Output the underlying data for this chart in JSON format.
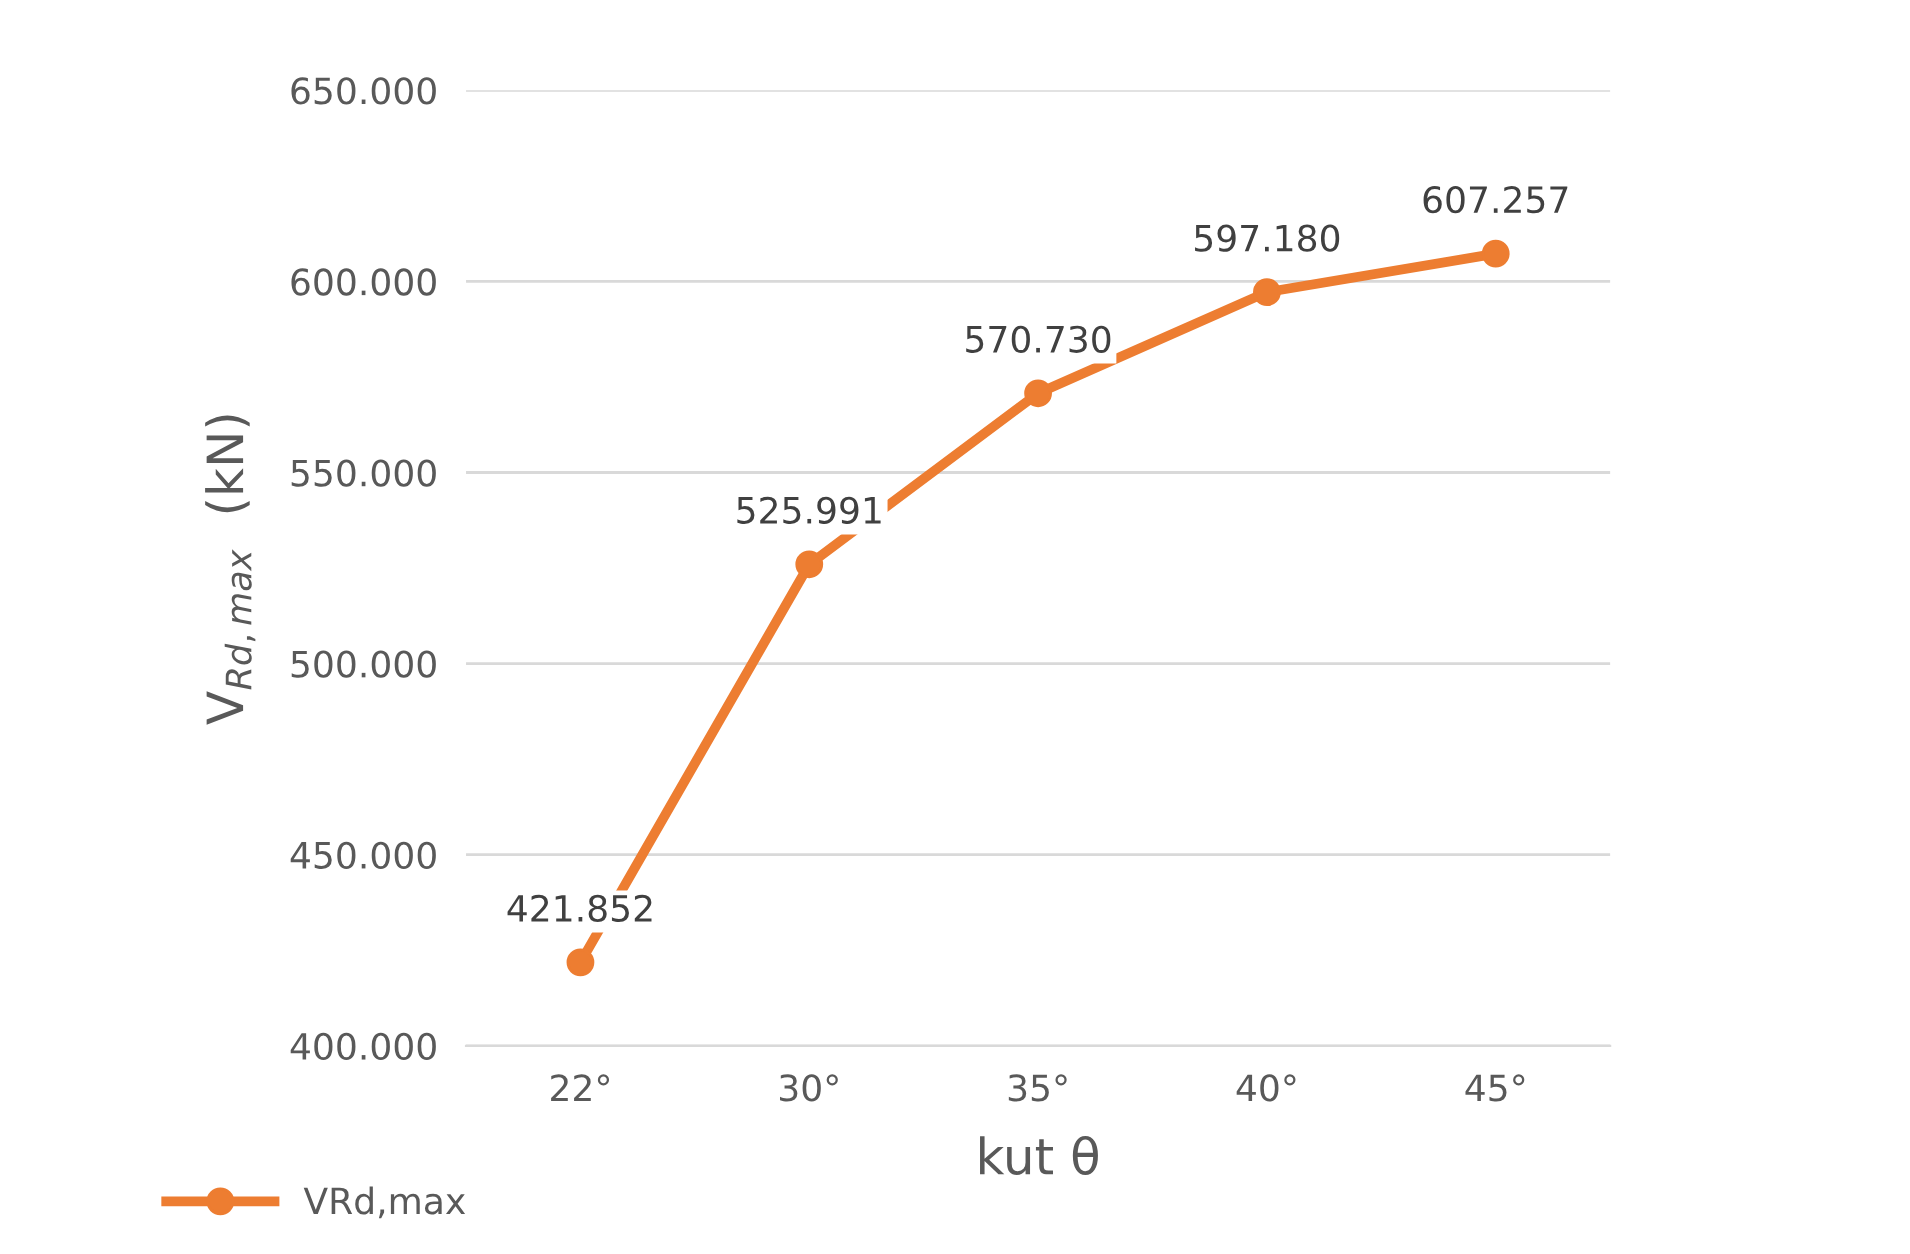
{
  "chart_data": {
    "type": "line",
    "xlabel": "kut θ",
    "ylabel": "V$_{Rd,max}$  (kN)",
    "categories": [
      "22°",
      "30°",
      "35°",
      "40°",
      "45°"
    ],
    "series": [
      {
        "name": "VRd,max",
        "color": "#ed7d31",
        "values": [
          421.852,
          525.991,
          570.73,
          597.18,
          607.257
        ],
        "value_labels": [
          "421.852",
          "525.991",
          "570.730",
          "597.180",
          "607.257"
        ]
      }
    ],
    "ylim": [
      400,
      650
    ],
    "yticks": [
      {
        "value": 400,
        "label": "400.000"
      },
      {
        "value": 450,
        "label": "450.000"
      },
      {
        "value": 500,
        "label": "500.000"
      },
      {
        "value": 550,
        "label": "550.000"
      },
      {
        "value": 600,
        "label": "600.000"
      },
      {
        "value": 650,
        "label": "650.000"
      }
    ],
    "grid": "y",
    "legend": "bottom left",
    "marker": "circle",
    "line_style": "solid"
  }
}
